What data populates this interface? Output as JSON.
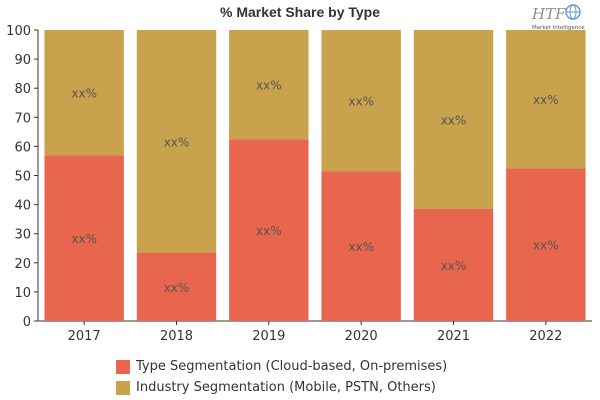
{
  "chart_data": {
    "type": "bar",
    "stacked": true,
    "title": "% Market Share by Type",
    "categories": [
      "2017",
      "2018",
      "2019",
      "2020",
      "2021",
      "2022"
    ],
    "series": [
      {
        "name": "Type Segmentation (Cloud-based, On-premises)",
        "color": "#e8664e",
        "values": [
          57,
          23.5,
          62.5,
          51.5,
          38.5,
          52.5
        ],
        "labels": [
          "xx%",
          "xx%",
          "xx%",
          "xx%",
          "xx%",
          "xx%"
        ]
      },
      {
        "name": "Industry Segmentation (Mobile, PSTN, Others)",
        "color": "#c9a24e",
        "values": [
          43,
          76.5,
          37.5,
          48.5,
          61.5,
          47.5
        ],
        "labels": [
          "xx%",
          "xx%",
          "xx%",
          "xx%",
          "xx%",
          "xx%"
        ]
      }
    ],
    "ylim": [
      0,
      100
    ],
    "yticks": [
      0,
      10,
      20,
      30,
      40,
      50,
      60,
      70,
      80,
      90,
      100
    ],
    "grid": false,
    "legend_position": "bottom"
  },
  "logo": {
    "text": "HTF",
    "subtext": "Market Intelligence"
  }
}
